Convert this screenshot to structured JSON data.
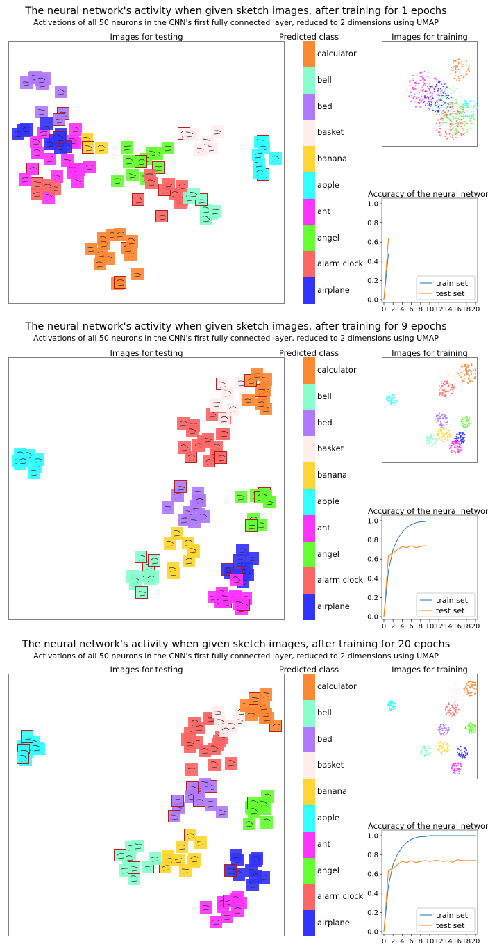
{
  "classes": [
    "airplane",
    "alarm clock",
    "angel",
    "ant",
    "apple",
    "banana",
    "basket",
    "bed",
    "bell",
    "calculator"
  ],
  "class_colors": {
    "airplane": "#3333ff",
    "alarm clock": "#ff6666",
    "angel": "#66ff33",
    "ant": "#ff33ff",
    "apple": "#33ffff",
    "banana": "#ffd633",
    "basket": "#ffeeee",
    "bed": "#b07aff",
    "bell": "#88ffcc",
    "calculator": "#ff8833"
  },
  "panels": [
    {
      "title": "The neural network's activity when given sketch images, after training for 1 epochs",
      "subtitle": "Activations of all 50 neurons in the  CNN's first fully connected layer, reduced to 2 dimensions using UMAP",
      "test_title": "Images for testing",
      "legend_title": "Predicted class",
      "train_title": "Images for training",
      "acc_title": "Accuracy of the neural network"
    },
    {
      "title": "The neural network's activity when given sketch images, after training for 9 epochs",
      "subtitle": "Activations of all 50 neurons in the  CNN's first fully connected layer, reduced to 2 dimensions using UMAP",
      "test_title": "Images for testing",
      "legend_title": "Predicted class",
      "train_title": "Images for training",
      "acc_title": "Accuracy of the neural network"
    },
    {
      "title": "The neural network's activity when given sketch images, after training for 20 epochs",
      "subtitle": "Activations of all 50 neurons in the  CNN's first fully connected layer, reduced to 2 dimensions using UMAP",
      "test_title": "Images for testing",
      "legend_title": "Predicted class",
      "train_title": "Images for training",
      "acc_title": "Accuracy of the neural network"
    }
  ],
  "chart_data": [
    {
      "type": "line",
      "epochs": 1,
      "title": "Accuracy of the neural network",
      "xticks": [
        "0",
        "2",
        "4",
        "6",
        "8",
        "10",
        "12",
        "14",
        "16",
        "18",
        "20"
      ],
      "yticks": [
        "0.0",
        "0.2",
        "0.4",
        "0.6",
        "0.8",
        "1.0"
      ],
      "xlim": [
        0,
        20
      ],
      "ylim": [
        0,
        1
      ],
      "legend": "bottom-right",
      "series": [
        {
          "name": "train set",
          "color": "#1f77b4",
          "x": [
            0,
            1
          ],
          "y": [
            0.0,
            0.48
          ]
        },
        {
          "name": "test set",
          "color": "#ff7f0e",
          "x": [
            0,
            1
          ],
          "y": [
            0.0,
            0.64
          ]
        }
      ]
    },
    {
      "type": "line",
      "epochs": 9,
      "title": "Accuracy of the neural network",
      "xticks": [
        "0",
        "2",
        "4",
        "6",
        "8",
        "10",
        "12",
        "14",
        "16",
        "18",
        "20"
      ],
      "yticks": [
        "0.0",
        "0.2",
        "0.4",
        "0.6",
        "0.8",
        "1.0"
      ],
      "xlim": [
        0,
        20
      ],
      "ylim": [
        0,
        1
      ],
      "legend": "bottom-right",
      "series": [
        {
          "name": "train set",
          "color": "#1f77b4",
          "x": [
            0,
            1,
            2,
            3,
            4,
            5,
            6,
            7,
            8,
            9
          ],
          "y": [
            0.0,
            0.48,
            0.7,
            0.81,
            0.88,
            0.93,
            0.96,
            0.98,
            0.99,
            0.99
          ]
        },
        {
          "name": "test set",
          "color": "#ff7f0e",
          "x": [
            0,
            1,
            2,
            3,
            4,
            5,
            6,
            7,
            8,
            9
          ],
          "y": [
            0.0,
            0.64,
            0.66,
            0.7,
            0.73,
            0.72,
            0.74,
            0.72,
            0.73,
            0.74
          ]
        }
      ]
    },
    {
      "type": "line",
      "epochs": 20,
      "title": "Accuracy of the neural network",
      "xticks": [
        "0",
        "2",
        "4",
        "6",
        "8",
        "10",
        "12",
        "14",
        "16",
        "18",
        "20"
      ],
      "yticks": [
        "0.0",
        "0.2",
        "0.4",
        "0.6",
        "0.8",
        "1.0"
      ],
      "xlim": [
        0,
        20
      ],
      "ylim": [
        0,
        1
      ],
      "legend": "bottom-right",
      "series": [
        {
          "name": "train set",
          "color": "#1f77b4",
          "x": [
            0,
            1,
            2,
            3,
            4,
            5,
            6,
            7,
            8,
            9,
            10,
            11,
            12,
            13,
            14,
            15,
            16,
            17,
            18,
            19,
            20
          ],
          "y": [
            0.0,
            0.48,
            0.7,
            0.81,
            0.88,
            0.93,
            0.96,
            0.98,
            0.99,
            0.99,
            1.0,
            1.0,
            1.0,
            1.0,
            1.0,
            1.0,
            1.0,
            1.0,
            1.0,
            1.0,
            1.0
          ]
        },
        {
          "name": "test set",
          "color": "#ff7f0e",
          "x": [
            0,
            1,
            2,
            3,
            4,
            5,
            6,
            7,
            8,
            9,
            10,
            11,
            12,
            13,
            14,
            15,
            16,
            17,
            18,
            19,
            20
          ],
          "y": [
            0.0,
            0.64,
            0.66,
            0.7,
            0.73,
            0.72,
            0.74,
            0.72,
            0.73,
            0.74,
            0.73,
            0.74,
            0.74,
            0.73,
            0.74,
            0.72,
            0.75,
            0.74,
            0.74,
            0.74,
            0.74
          ]
        }
      ]
    }
  ]
}
